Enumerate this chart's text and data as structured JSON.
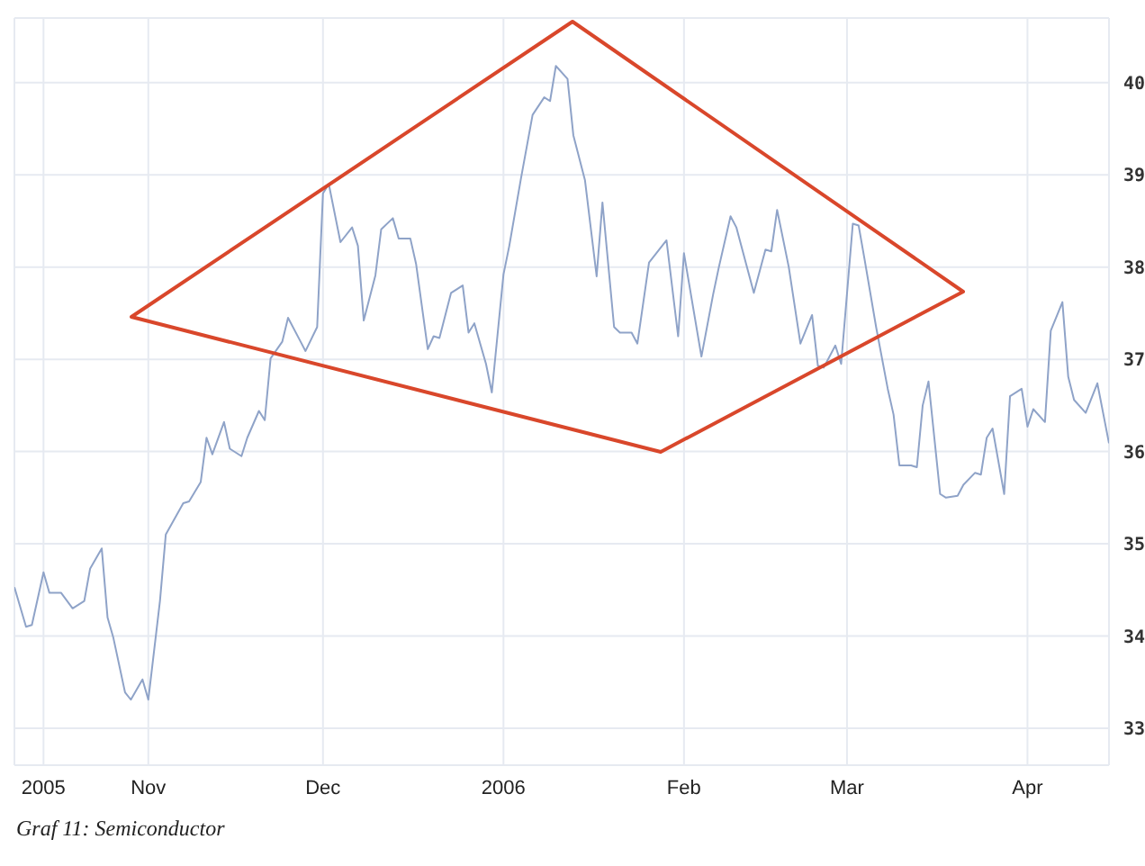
{
  "chart_data": {
    "type": "line",
    "x": [
      "2005-10-09",
      "2005-10-11",
      "2005-10-12",
      "2005-10-14",
      "2005-10-15",
      "2005-10-17",
      "2005-10-19",
      "2005-10-21",
      "2005-10-22",
      "2005-10-24",
      "2005-10-25",
      "2005-10-26",
      "2005-10-28",
      "2005-10-29",
      "2005-10-31",
      "2005-11-01",
      "2005-11-03",
      "2005-11-04",
      "2005-11-07",
      "2005-11-08",
      "2005-11-10",
      "2005-11-11",
      "2005-11-12",
      "2005-11-14",
      "2005-11-15",
      "2005-11-17",
      "2005-11-18",
      "2005-11-20",
      "2005-11-21",
      "2005-11-22",
      "2005-11-24",
      "2005-11-25",
      "2005-11-27",
      "2005-11-28",
      "2005-11-30",
      "2005-12-01",
      "2005-12-02",
      "2005-12-04",
      "2005-12-06",
      "2005-12-07",
      "2005-12-08",
      "2005-12-10",
      "2005-12-11",
      "2005-12-13",
      "2005-12-14",
      "2005-12-16",
      "2005-12-17",
      "2005-12-19",
      "2005-12-20",
      "2005-12-21",
      "2005-12-23",
      "2005-12-25",
      "2005-12-26",
      "2005-12-27",
      "2005-12-29",
      "2005-12-30",
      "2006-01-01",
      "2006-01-02",
      "2006-01-04",
      "2006-01-06",
      "2006-01-08",
      "2006-01-09",
      "2006-01-10",
      "2006-01-12",
      "2006-01-13",
      "2006-01-15",
      "2006-01-17",
      "2006-01-18",
      "2006-01-20",
      "2006-01-21",
      "2006-01-23",
      "2006-01-24",
      "2006-01-26",
      "2006-01-29",
      "2006-01-31",
      "2006-02-01",
      "2006-02-04",
      "2006-02-06",
      "2006-02-07",
      "2006-02-09",
      "2006-02-10",
      "2006-02-13",
      "2006-02-15",
      "2006-02-16",
      "2006-02-17",
      "2006-02-19",
      "2006-02-21",
      "2006-02-23",
      "2006-02-24",
      "2006-02-25",
      "2006-02-27",
      "2006-02-28",
      "2006-03-02",
      "2006-03-03",
      "2006-03-04",
      "2006-03-06",
      "2006-03-08",
      "2006-03-09",
      "2006-03-10",
      "2006-03-12",
      "2006-03-13",
      "2006-03-14",
      "2006-03-15",
      "2006-03-17",
      "2006-03-18",
      "2006-03-20",
      "2006-03-21",
      "2006-03-23",
      "2006-03-24",
      "2006-03-25",
      "2006-03-26",
      "2006-03-28",
      "2006-03-29",
      "2006-03-31",
      "2006-04-01",
      "2006-04-02",
      "2006-04-04",
      "2006-04-05",
      "2006-04-07",
      "2006-04-08",
      "2006-04-09",
      "2006-04-11",
      "2006-04-13",
      "2006-04-15"
    ],
    "series": [
      {
        "color": "#8fa3c8",
        "values": [
          34.53,
          34.1,
          34.12,
          34.69,
          34.47,
          34.47,
          34.3,
          34.38,
          34.73,
          34.95,
          34.2,
          33.98,
          33.39,
          33.31,
          33.53,
          33.31,
          34.38,
          35.1,
          35.44,
          35.46,
          35.67,
          36.15,
          35.97,
          36.32,
          36.03,
          35.95,
          36.15,
          36.44,
          36.34,
          37.01,
          37.19,
          37.45,
          37.21,
          37.09,
          37.35,
          38.8,
          38.9,
          38.27,
          38.43,
          38.23,
          37.42,
          37.91,
          38.41,
          38.53,
          38.31,
          38.31,
          38.03,
          37.11,
          37.25,
          37.23,
          37.72,
          37.8,
          37.29,
          37.39,
          36.95,
          36.64,
          37.92,
          38.23,
          38.96,
          39.65,
          39.84,
          39.8,
          40.18,
          40.04,
          39.43,
          38.94,
          37.9,
          38.7,
          37.35,
          37.29,
          37.29,
          37.17,
          38.05,
          38.29,
          37.25,
          38.15,
          37.03,
          37.7,
          38.0,
          38.55,
          38.43,
          37.72,
          38.19,
          38.17,
          38.62,
          38.0,
          37.17,
          37.48,
          36.93,
          36.91,
          37.15,
          36.95,
          38.47,
          38.45,
          38.09,
          37.35,
          36.68,
          36.4,
          35.85,
          35.85,
          35.83,
          36.5,
          36.76,
          35.54,
          35.5,
          35.52,
          35.64,
          35.77,
          35.75,
          36.15,
          36.25,
          35.54,
          36.6,
          36.68,
          36.27,
          36.46,
          36.32,
          37.31,
          37.62,
          36.81,
          36.56,
          36.42,
          36.74,
          36.09
        ]
      }
    ],
    "xlim": [
      "2005-10-09",
      "2006-04-15"
    ],
    "xticks": [
      {
        "value": "2005-10-14",
        "label": "2005"
      },
      {
        "value": "2005-11-01",
        "label": "Nov"
      },
      {
        "value": "2005-12-01",
        "label": "Dec"
      },
      {
        "value": "2006-01-01",
        "label": "2006"
      },
      {
        "value": "2006-02-01",
        "label": "Feb"
      },
      {
        "value": "2006-03-01",
        "label": "Mar"
      },
      {
        "value": "2006-04-01",
        "label": "Apr"
      }
    ],
    "ylim": [
      32.6,
      40.7
    ],
    "yticks": [
      33,
      34,
      35,
      36,
      37,
      38,
      39,
      40
    ],
    "grid": true,
    "marker": "none",
    "line_style": "solid",
    "annotations": [
      "Graf 11: Semiconductor"
    ]
  }
}
